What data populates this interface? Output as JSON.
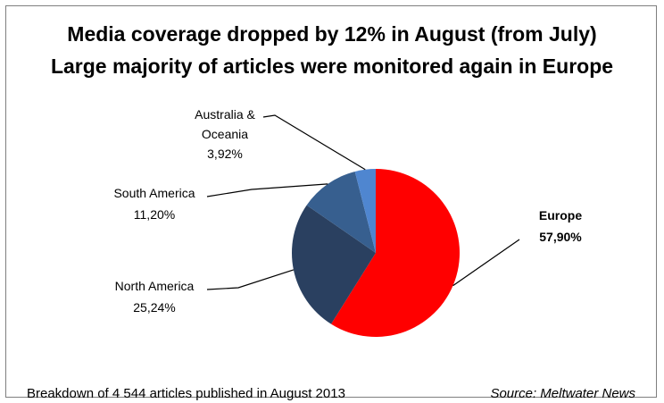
{
  "chart_data": {
    "type": "pie",
    "title": "Media coverage dropped by 12% in August (from July)",
    "subtitle": "Large majority of articles were monitored again in Europe",
    "footer_note": "Breakdown of 4 544 articles published in August 2013",
    "source": "Source: Meltwater News",
    "slices": [
      {
        "name": "Europe",
        "value": 57.9,
        "label": "57,90%",
        "color": "#ff0000",
        "bold": true
      },
      {
        "name": "North America",
        "value": 25.24,
        "label": "25,24%",
        "color": "#2a4060"
      },
      {
        "name": "South America",
        "value": 11.2,
        "label": "11,20%",
        "color": "#375f8f"
      },
      {
        "name_lines": [
          "Australia &",
          "Oceania"
        ],
        "value": 3.92,
        "label": "3,92%",
        "color": "#4f86d0"
      }
    ]
  }
}
